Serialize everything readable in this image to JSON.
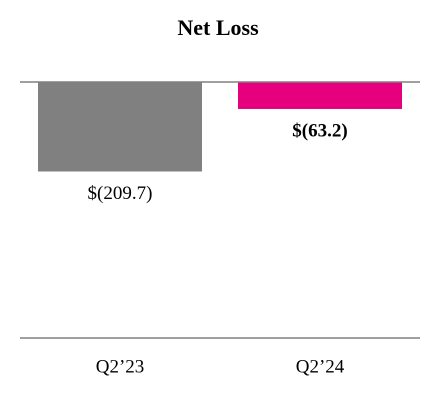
{
  "chart_data": {
    "type": "bar",
    "title": "Net Loss",
    "categories": [
      "Q2’23",
      "Q2’24"
    ],
    "values": [
      -209.7,
      -63.2
    ],
    "value_labels": [
      "$(209.7)",
      "$(63.2)"
    ],
    "colors": [
      "#808080",
      "#e6007e"
    ],
    "ylim": [
      -600,
      0
    ]
  }
}
